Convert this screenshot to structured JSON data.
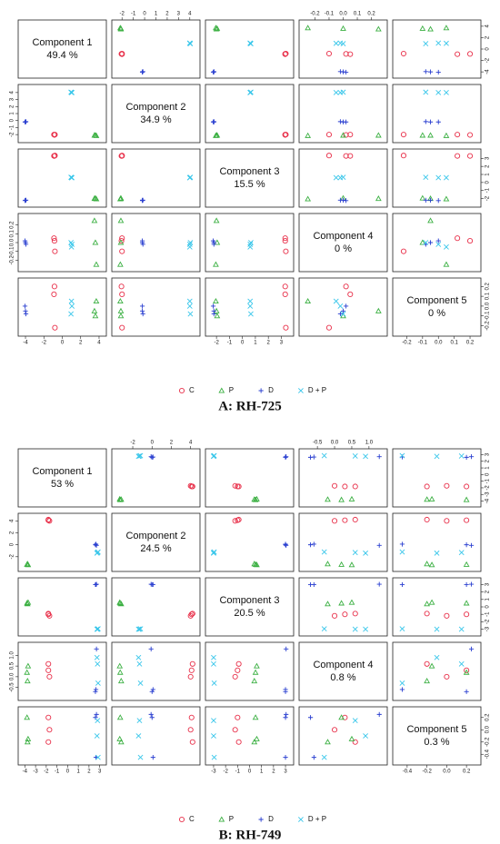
{
  "chart_data": [
    {
      "type": "scatter-matrix",
      "title": "A: RH-725",
      "components": [
        {
          "name": "Component 1",
          "label": "49.4 %",
          "lim": [
            -4.3,
            4.3
          ],
          "ticks": [
            -4,
            -2,
            0,
            2,
            4
          ]
        },
        {
          "name": "Component 2",
          "label": "34.9 %",
          "lim": [
            -2.5,
            4.5
          ],
          "ticks": [
            -2,
            -1,
            0,
            1,
            2,
            3,
            4
          ]
        },
        {
          "name": "Component 3",
          "label": "15.5 %",
          "lim": [
            -2.5,
            3.6
          ],
          "ticks": [
            -2,
            -1,
            0,
            1,
            2,
            3
          ]
        },
        {
          "name": "Component 4",
          "label": "0 %",
          "lim": [
            -0.28,
            0.28
          ],
          "ticks": [
            -0.2,
            -0.1,
            {
              "value": 0,
              "label": "0.0"
            },
            0.1,
            0.2
          ]
        },
        {
          "name": "Component 5",
          "label": "0 %",
          "lim": [
            -0.26,
            0.24
          ],
          "ticks": [
            -0.2,
            -0.1,
            {
              "value": 0,
              "label": "0.0"
            },
            0.1,
            0.2
          ]
        }
      ],
      "groups": [
        {
          "name": "C",
          "color": "#e8304a",
          "marker": "circle",
          "scores": [
            [
              -0.9,
              -2.0,
              3.3,
              0.05,
              0.12
            ],
            [
              -0.8,
              -2.0,
              3.35,
              -0.1,
              -0.22
            ],
            [
              -0.85,
              -2.05,
              3.3,
              0.02,
              0.2
            ]
          ]
        },
        {
          "name": "P",
          "color": "#3cb043",
          "marker": "triangle",
          "scores": [
            [
              3.5,
              -2.1,
              -2.0,
              0.25,
              -0.05
            ],
            [
              3.7,
              -2.15,
              -2.05,
              -0.25,
              0.05
            ],
            [
              3.6,
              -2.1,
              -1.95,
              0.0,
              -0.1
            ]
          ]
        },
        {
          "name": "D",
          "color": "#2a3fd0",
          "marker": "plus",
          "scores": [
            [
              -4.0,
              -0.2,
              -2.2,
              0.0,
              -0.05
            ],
            [
              -3.95,
              -0.15,
              -2.2,
              -0.02,
              -0.08
            ],
            [
              -4.05,
              -0.2,
              -2.25,
              0.02,
              0.0
            ]
          ]
        },
        {
          "name": "D + P",
          "color": "#38c6ea",
          "marker": "cross",
          "scores": [
            [
              1.0,
              4.0,
              0.6,
              -0.05,
              0.05
            ],
            [
              1.05,
              4.0,
              0.6,
              -0.02,
              0.0
            ],
            [
              0.95,
              4.05,
              0.65,
              0.0,
              -0.08
            ]
          ]
        }
      ]
    },
    {
      "type": "scatter-matrix",
      "title": "B: RH-749",
      "components": [
        {
          "name": "Component 1",
          "label": "53 %",
          "lim": [
            -4.2,
            3.2
          ],
          "ticks": [
            -4,
            -3,
            -2,
            -1,
            0,
            1,
            2,
            3
          ]
        },
        {
          "name": "Component 2",
          "label": "24.5 %",
          "lim": [
            -3.7,
            4.5
          ],
          "ticks": [
            -2,
            0,
            2,
            4
          ]
        },
        {
          "name": "Component 3",
          "label": "20.5 %",
          "lim": [
            -3.3,
            3.3
          ],
          "ticks": [
            -3,
            -2,
            -1,
            0,
            1,
            2,
            3
          ]
        },
        {
          "name": "Component 4",
          "label": "0.8 %",
          "lim": [
            -0.9,
            1.4
          ],
          "ticks": [
            -0.5,
            {
              "value": 0,
              "label": "0.0"
            },
            0.5,
            {
              "value": 1,
              "label": "1.0"
            }
          ]
        },
        {
          "name": "Component 5",
          "label": "0.3 %",
          "lim": [
            -0.5,
            0.3
          ],
          "ticks": [
            -0.4,
            -0.2,
            {
              "value": 0,
              "label": "0.0"
            },
            0.2
          ]
        }
      ],
      "groups": [
        {
          "name": "C",
          "color": "#e8304a",
          "marker": "circle",
          "scores": [
            [
              -1.8,
              4.1,
              -1.0,
              0.3,
              0.2
            ],
            [
              -1.7,
              4.0,
              -1.2,
              0.0,
              0.0
            ],
            [
              -1.8,
              4.2,
              -0.9,
              0.6,
              -0.2
            ]
          ]
        },
        {
          "name": "P",
          "color": "#3cb043",
          "marker": "triangle",
          "scores": [
            [
              -3.8,
              -3.3,
              0.5,
              0.2,
              0.2
            ],
            [
              -3.75,
              -3.2,
              0.4,
              -0.2,
              -0.2
            ],
            [
              -3.7,
              -3.35,
              0.6,
              0.5,
              -0.15
            ]
          ]
        },
        {
          "name": "D",
          "color": "#2a3fd0",
          "marker": "plus",
          "scores": [
            [
              2.6,
              0.0,
              3.0,
              -0.7,
              0.2
            ],
            [
              2.7,
              -0.1,
              3.05,
              1.3,
              0.25
            ],
            [
              2.65,
              0.1,
              3.0,
              -0.6,
              -0.45
            ]
          ]
        },
        {
          "name": "D + P",
          "color": "#38c6ea",
          "marker": "cross",
          "scores": [
            [
              2.8,
              -1.3,
              -3.0,
              0.6,
              0.15
            ],
            [
              2.75,
              -1.4,
              -3.0,
              0.9,
              -0.1
            ],
            [
              2.85,
              -1.2,
              -2.95,
              -0.3,
              -0.45
            ]
          ]
        }
      ]
    }
  ]
}
